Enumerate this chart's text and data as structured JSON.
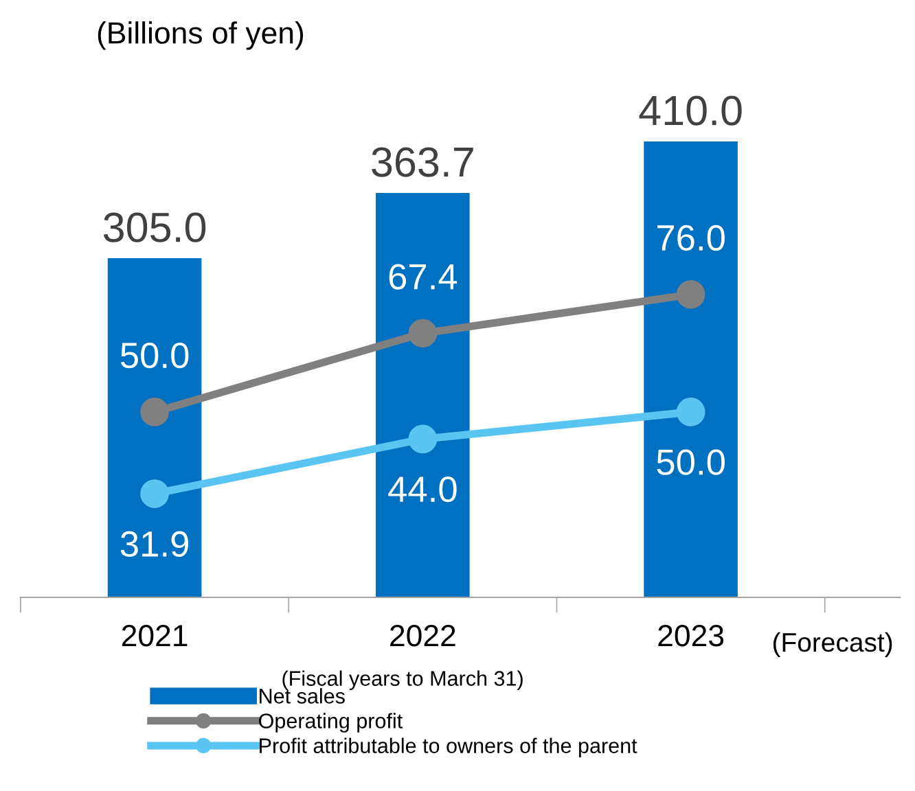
{
  "chart_data": {
    "type": "bar",
    "categories": [
      "2021",
      "2022",
      "2023"
    ],
    "series": [
      {
        "name": "Net sales",
        "color": "#0070c0",
        "values": [
          305.0,
          363.7,
          410.0
        ],
        "value_labels": [
          "305.0",
          "363.7",
          "410.0"
        ]
      },
      {
        "name": "Operating profit",
        "type": "line",
        "axis": "y2",
        "color": "#808080",
        "values": [
          50.0,
          67.4,
          76.0
        ],
        "value_labels": [
          "50.0",
          "67.4",
          "76.0"
        ]
      },
      {
        "name": "Profit attributable to owners of the parent",
        "type": "line",
        "axis": "y2",
        "color": "#5bc5f2",
        "values": [
          31.9,
          44.0,
          50.0
        ],
        "value_labels": [
          "31.9",
          "44.0",
          "50.0"
        ]
      }
    ],
    "tick_labels": "x",
    "marker": "circle",
    "legend": "bottom",
    "annotations": [
      "(Billions of yen)",
      "(Fiscal years to March 31)",
      "(Forecast)"
    ]
  }
}
